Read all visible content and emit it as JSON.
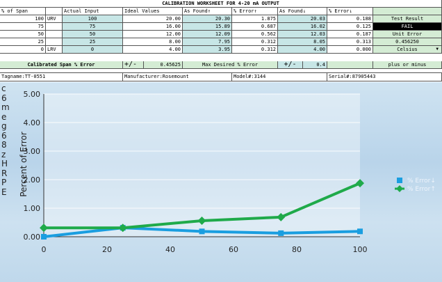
{
  "title": "CALIBRATION WORKSHEET FOR 4-20 mA OUTPUT",
  "headers": {
    "span": "% of Span",
    "actual": "Actual Input",
    "ideal": "Ideal Values",
    "asfound_up": "As Found↑",
    "error_up": "% Error↑",
    "asfound_down": "As Found↓",
    "error_down": "% Error↓"
  },
  "rows": [
    {
      "span": "100",
      "label": "URV",
      "actual": "100",
      "ideal": "20.00",
      "found_up": "20.30",
      "err_up": "1.875",
      "found_down": "20.03",
      "err_down": "0.188"
    },
    {
      "span": "75",
      "label": "",
      "actual": "75",
      "ideal": "16.00",
      "found_up": "15.89",
      "err_up": "0.687",
      "found_down": "16.02",
      "err_down": "0.125"
    },
    {
      "span": "50",
      "label": "",
      "actual": "50",
      "ideal": "12.00",
      "found_up": "12.09",
      "err_up": "0.562",
      "found_down": "12.03",
      "err_down": "0.187"
    },
    {
      "span": "25",
      "label": "",
      "actual": "25",
      "ideal": "8.00",
      "found_up": "7.95",
      "err_up": "0.312",
      "found_down": "8.05",
      "err_down": "0.313"
    },
    {
      "span": "0",
      "label": "LRV",
      "actual": "0",
      "ideal": "4.00",
      "found_up": "3.95",
      "err_up": "0.312",
      "found_down": "4.00",
      "err_down": "0.000"
    }
  ],
  "side": {
    "test_result_label": "Test Result",
    "test_result_value": "FAIL",
    "unit_error_label": "Unit Error",
    "unit_error_value": "0.456250",
    "unit_select": "Celsius"
  },
  "summary": {
    "calibrated_label": "Calibrated Span % Error",
    "pm1": "+/-",
    "calibrated_value": "0.45625",
    "max_label": "Max Desired % Error",
    "pm2": "+/-",
    "max_value": "0.4",
    "plus_minus": "plus or minus"
  },
  "info": {
    "tagname": "Tagname:TT-0551",
    "manufacturer": "Manufacturer:Rosemount",
    "model": "Model#:3144",
    "serial": "Serial#:87905443"
  },
  "side_letters": [
    "c",
    "6",
    "m",
    "e",
    "g",
    "6",
    "8",
    "z",
    "H",
    "R",
    "P",
    "E"
  ],
  "chart_data": {
    "type": "line",
    "ylabel": "Percent of Error",
    "x": [
      0,
      25,
      50,
      75,
      100
    ],
    "xlim": [
      0,
      100
    ],
    "ylim": [
      0,
      5
    ],
    "xticks": [
      "0",
      "20",
      "40",
      "60",
      "80",
      "100"
    ],
    "yticks": [
      "0.00",
      "1.00",
      "2.00",
      "3.00",
      "4.00",
      "5.00"
    ],
    "series": [
      {
        "name": "% Error↓",
        "color": "#1a9ee0",
        "values": [
          0.0,
          0.313,
          0.187,
          0.125,
          0.188
        ]
      },
      {
        "name": "% Error↑",
        "color": "#1faa4a",
        "values": [
          0.312,
          0.312,
          0.562,
          0.687,
          1.875
        ]
      }
    ]
  }
}
